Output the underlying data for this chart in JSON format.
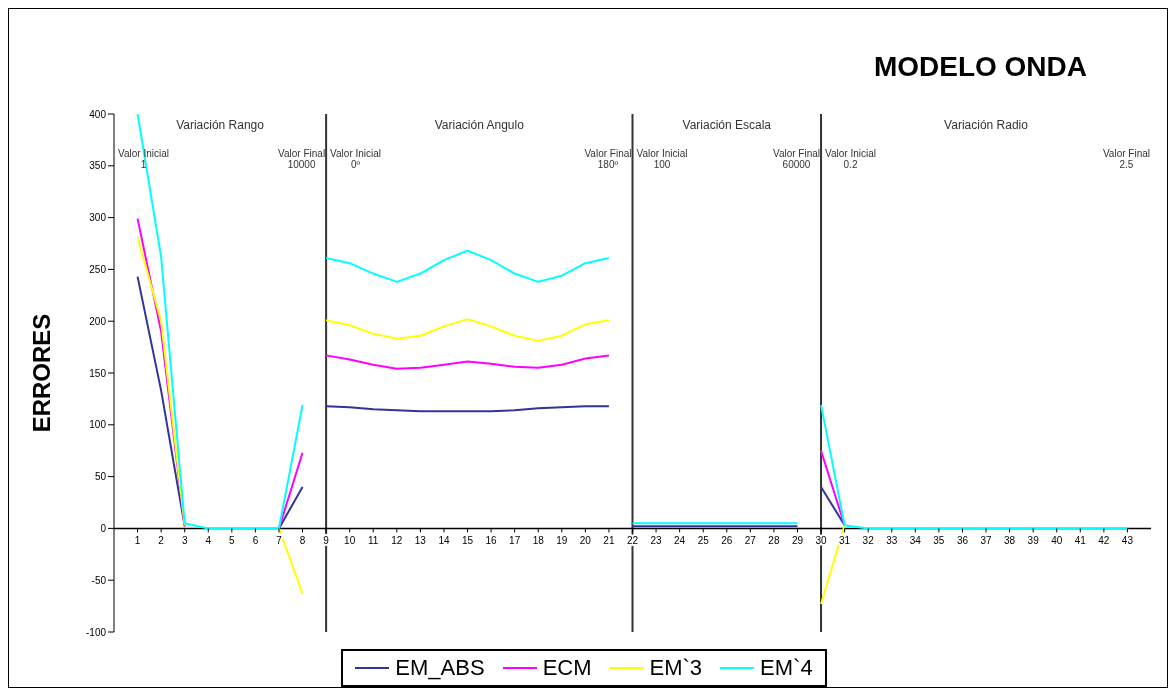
{
  "chart_data": {
    "type": "line",
    "title": "MODELO ONDA",
    "ylabel": "ERRORES",
    "xlim": [
      0,
      44
    ],
    "xticks": [
      1,
      2,
      3,
      4,
      5,
      6,
      7,
      8,
      9,
      10,
      11,
      12,
      13,
      14,
      15,
      16,
      17,
      18,
      19,
      20,
      21,
      22,
      23,
      24,
      25,
      26,
      27,
      28,
      29,
      30,
      31,
      32,
      33,
      34,
      35,
      36,
      37,
      38,
      39,
      40,
      41,
      42,
      43
    ],
    "ylim": [
      -100,
      400
    ],
    "yticks": [
      -100,
      -50,
      0,
      50,
      100,
      150,
      200,
      250,
      300,
      350,
      400
    ],
    "legend": "bottom",
    "marker": "none",
    "line_style": "solid",
    "ref_lines": [
      {
        "axis": "x",
        "value": 9,
        "color": "#333333"
      },
      {
        "axis": "x",
        "value": 22,
        "color": "#333333"
      },
      {
        "axis": "x",
        "value": 30,
        "color": "#333333"
      }
    ],
    "annotations": [
      "Variación Rango",
      "Valor Inicial\n1",
      "Valor Final\n10000",
      "Variación Angulo",
      "Valor Inicial\n0º",
      "Valor Final\n180º",
      "Variación Escala",
      "Valor Inicial\n100",
      "Valor Final\n60000",
      "Variación Radio",
      "Valor Inicial\n0.2",
      "Valor Final\n2.5"
    ],
    "series": [
      {
        "name": "EM_ABS",
        "color": "#333399",
        "x": [
          1,
          2,
          3,
          4,
          5,
          6,
          7,
          8
        ],
        "values": [
          243,
          133,
          2,
          null,
          null,
          null,
          0,
          40
        ]
      },
      {
        "name": "ECM",
        "color": "#ff00ff",
        "x": [
          1,
          2,
          3,
          4,
          5,
          6,
          7,
          8
        ],
        "values": [
          299,
          190,
          2,
          null,
          null,
          null,
          0,
          73
        ]
      },
      {
        "name": "EM`3",
        "color": "#ffff00",
        "x": [
          1,
          2,
          3,
          4,
          5,
          6,
          7,
          8
        ],
        "values": [
          281,
          200,
          3,
          null,
          null,
          null,
          0,
          -63
        ]
      },
      {
        "name": "EM`4",
        "color": "#00ffff",
        "x": [
          1,
          2,
          3,
          4,
          5,
          6,
          7,
          8
        ],
        "values": [
          400,
          262,
          5,
          0,
          0,
          0,
          0,
          119
        ]
      },
      {
        "color": "#333399",
        "x": [
          9,
          10,
          11,
          12,
          13,
          14,
          15,
          16,
          17,
          18,
          19,
          20,
          21
        ],
        "values": [
          118,
          117,
          115,
          114,
          113,
          113,
          113,
          113,
          114,
          116,
          117,
          118,
          118
        ]
      },
      {
        "color": "#ff00ff",
        "x": [
          9,
          10,
          11,
          12,
          13,
          14,
          15,
          16,
          17,
          18,
          19,
          20,
          21
        ],
        "values": [
          167,
          163,
          158,
          154,
          155,
          158,
          161,
          159,
          156,
          155,
          158,
          164,
          167
        ]
      },
      {
        "color": "#ffff00",
        "x": [
          9,
          10,
          11,
          12,
          13,
          14,
          15,
          16,
          17,
          18,
          19,
          20,
          21
        ],
        "values": [
          201,
          196,
          188,
          183,
          186,
          195,
          202,
          195,
          186,
          181,
          186,
          197,
          201
        ]
      },
      {
        "color": "#00ffff",
        "x": [
          9,
          10,
          11,
          12,
          13,
          14,
          15,
          16,
          17,
          18,
          19,
          20,
          21
        ],
        "values": [
          261,
          256,
          246,
          238,
          246,
          259,
          268,
          259,
          246,
          238,
          244,
          256,
          261
        ]
      },
      {
        "color": "#333399",
        "x": [
          22,
          23,
          24,
          25,
          26,
          27,
          28,
          29
        ],
        "values": [
          2,
          2,
          2,
          2,
          2,
          2,
          2,
          2
        ]
      },
      {
        "color": "#00ffff",
        "x": [
          22,
          23,
          24,
          25,
          26,
          27,
          28,
          29
        ],
        "values": [
          5,
          5,
          5,
          5,
          5,
          5,
          5,
          5
        ]
      },
      {
        "color": "#333399",
        "x": [
          30,
          31
        ],
        "values": [
          40,
          3
        ]
      },
      {
        "color": "#ff00ff",
        "x": [
          30,
          31
        ],
        "values": [
          75,
          3
        ]
      },
      {
        "color": "#ffff00",
        "x": [
          30,
          31
        ],
        "values": [
          -73,
          3
        ]
      },
      {
        "color": "#00ffff",
        "x": [
          30,
          31,
          32,
          33,
          34,
          35,
          36,
          37,
          38,
          39,
          40,
          41,
          42,
          43
        ],
        "values": [
          119,
          3,
          0,
          0,
          0,
          0,
          0,
          0,
          0,
          0,
          0,
          0,
          0,
          0
        ]
      }
    ]
  }
}
